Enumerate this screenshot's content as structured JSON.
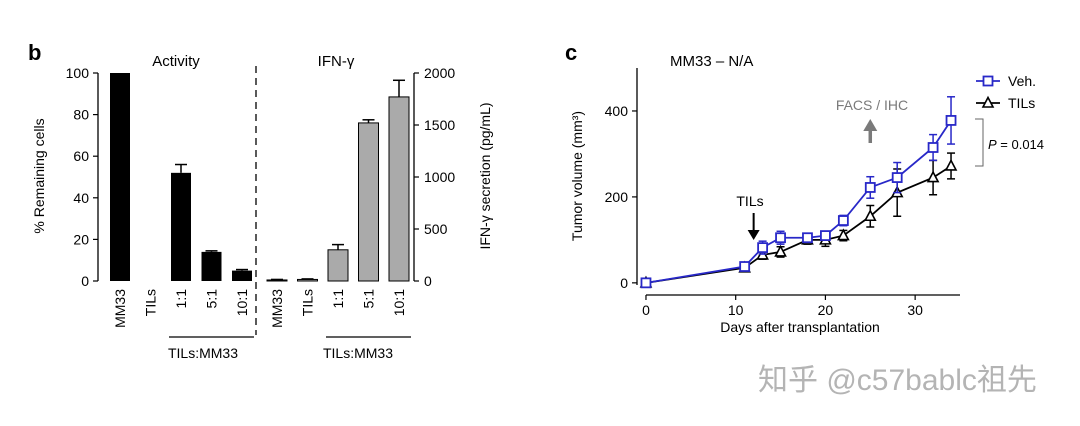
{
  "chart_data": [
    {
      "panel": "b",
      "type": "bar",
      "left": {
        "title": "Activity",
        "ylabel": "% Remaining cells",
        "ylim": [
          0,
          100
        ],
        "yticks": [
          "0",
          "20",
          "40",
          "60",
          "80",
          "100"
        ],
        "categories": [
          "MM33",
          "TILs",
          "1:1",
          "5:1",
          "10:1"
        ],
        "values": [
          100,
          0,
          52,
          14,
          5
        ],
        "errors": [
          0,
          0,
          4,
          0.5,
          0.5
        ],
        "bar_color": "#000000",
        "group_label": "TILs:MM33"
      },
      "right": {
        "title": "IFN-γ",
        "ylabel": "IFN-γ secretion (pg/mL)",
        "ylim": [
          0,
          2000
        ],
        "yticks": [
          "0",
          "500",
          "1000",
          "1500",
          "2000"
        ],
        "categories": [
          "MM33",
          "TILs",
          "1:1",
          "5:1",
          "10:1"
        ],
        "values": [
          10,
          15,
          300,
          1520,
          1770
        ],
        "errors": [
          5,
          5,
          50,
          30,
          160
        ],
        "bar_color": "#aaaaaa",
        "group_label": "TILs:MM33"
      }
    },
    {
      "panel": "c",
      "type": "line",
      "title": "MM33 – N/A",
      "xlabel": "Days after transplantation",
      "ylabel": "Tumor volume (mm³)",
      "xlim": [
        -1,
        35
      ],
      "ylim": [
        -5,
        500
      ],
      "xticks": [
        "0",
        "10",
        "20",
        "30"
      ],
      "yticks": [
        "0",
        "200",
        "400"
      ],
      "series": [
        {
          "name": "Veh.",
          "color": "#2828c8",
          "marker": "square",
          "x": [
            0,
            11,
            13,
            15,
            18,
            20,
            22,
            25,
            28,
            32,
            34
          ],
          "y": [
            0,
            38,
            82,
            105,
            105,
            110,
            145,
            222,
            245,
            315,
            378
          ],
          "err": [
            0,
            5,
            15,
            15,
            8,
            10,
            12,
            25,
            35,
            30,
            55
          ]
        },
        {
          "name": "TILs",
          "color": "#000000",
          "marker": "triangle",
          "x": [
            0,
            11,
            13,
            15,
            18,
            20,
            22,
            25,
            28,
            32,
            34
          ],
          "y": [
            0,
            35,
            65,
            72,
            100,
            100,
            110,
            155,
            210,
            245,
            272
          ],
          "err": [
            0,
            5,
            10,
            12,
            10,
            15,
            12,
            25,
            55,
            40,
            30
          ]
        }
      ],
      "annotations": {
        "tils_arrow": {
          "text": "TILs",
          "x": 12
        },
        "facs_arrow": {
          "text": "FACS / IHC",
          "x": 25
        },
        "pvalue": {
          "prefix": "P",
          "value": " = 0.014"
        }
      }
    }
  ],
  "watermark": "知乎 @c57bablc祖先"
}
